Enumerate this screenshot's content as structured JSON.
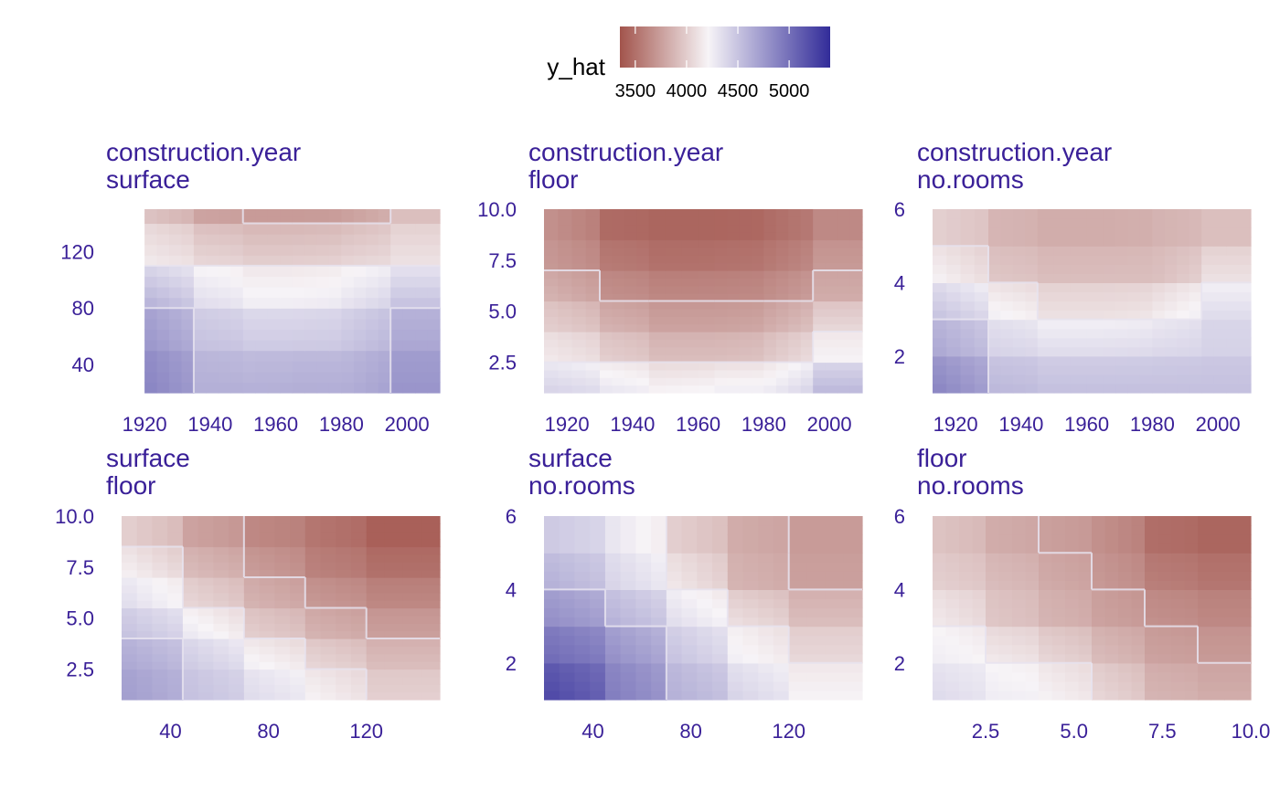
{
  "legend": {
    "title": "y_hat",
    "tick_labels": [
      "3500",
      "4000",
      "4500",
      "5000"
    ],
    "tick_values": [
      3500,
      4000,
      4500,
      5000
    ],
    "range": [
      3350,
      5400
    ],
    "low_color": "#a2544c",
    "mid_color": "#f7f4f7",
    "high_color": "#322c99"
  },
  "colors": {
    "panel_title": "#3a2098",
    "tick_label": "#3a2098",
    "contour": "#e8e4f0"
  },
  "chart_data": [
    {
      "type": "heatmap",
      "title": [
        "construction.year",
        "surface"
      ],
      "x_ticks": [
        "1920",
        "1940",
        "1960",
        "1980",
        "2000"
      ],
      "x_tick_values": [
        1920,
        1940,
        1960,
        1980,
        2000
      ],
      "xlim": [
        1913,
        2010
      ],
      "y_ticks": [
        "40",
        "80",
        "120"
      ],
      "y_tick_values": [
        40,
        80,
        120
      ],
      "ylim": [
        20,
        150
      ],
      "x_grid": [
        1920,
        1935,
        1950,
        1965,
        1980,
        1995,
        2010
      ],
      "y_grid": [
        20,
        50,
        80,
        110,
        140,
        150
      ],
      "z": [
        [
          4900,
          4650,
          4640,
          4660,
          4650,
          4800
        ],
        [
          4800,
          4550,
          4500,
          4500,
          4520,
          4700
        ],
        [
          4650,
          4400,
          4300,
          4300,
          4350,
          4550
        ],
        [
          4200,
          4100,
          4050,
          4050,
          4080,
          4150
        ],
        [
          3980,
          3800,
          3750,
          3750,
          3770,
          3950
        ]
      ]
    },
    {
      "type": "heatmap",
      "title": [
        "construction.year",
        "floor"
      ],
      "x_ticks": [
        "1920",
        "1940",
        "1960",
        "1980",
        "2000"
      ],
      "x_tick_values": [
        1920,
        1940,
        1960,
        1980,
        2000
      ],
      "xlim": [
        1913,
        2010
      ],
      "y_ticks": [
        "2.5",
        "5.0",
        "7.5",
        "10.0"
      ],
      "y_tick_values": [
        2.5,
        5.0,
        7.5,
        10.0
      ],
      "ylim": [
        1,
        10
      ],
      "x_grid": [
        1913,
        1930,
        1945,
        1965,
        1980,
        1995,
        2010
      ],
      "y_grid": [
        1,
        2.5,
        4,
        5.5,
        7,
        8.5,
        10
      ],
      "z": [
        [
          4450,
          4350,
          4250,
          4300,
          4300,
          4600
        ],
        [
          4200,
          4050,
          3950,
          3950,
          4000,
          4250
        ],
        [
          4050,
          3900,
          3800,
          3800,
          3850,
          4100
        ],
        [
          3900,
          3700,
          3650,
          3650,
          3680,
          3850
        ],
        [
          3750,
          3580,
          3520,
          3530,
          3560,
          3750
        ],
        [
          3700,
          3480,
          3450,
          3450,
          3480,
          3650
        ]
      ]
    },
    {
      "type": "heatmap",
      "title": [
        "construction.year",
        "no.rooms"
      ],
      "x_ticks": [
        "1920",
        "1940",
        "1960",
        "1980",
        "2000"
      ],
      "x_tick_values": [
        1920,
        1940,
        1960,
        1980,
        2000
      ],
      "xlim": [
        1913,
        2010
      ],
      "y_ticks": [
        "2",
        "4",
        "6"
      ],
      "y_tick_values": [
        2,
        4,
        6
      ],
      "ylim": [
        1,
        6
      ],
      "x_grid": [
        1913,
        1930,
        1945,
        1965,
        1980,
        1995,
        2010
      ],
      "y_grid": [
        1,
        2,
        3,
        4,
        5,
        6
      ],
      "z": [
        [
          4900,
          4600,
          4550,
          4550,
          4550,
          4550
        ],
        [
          4700,
          4450,
          4400,
          4400,
          4420,
          4450
        ],
        [
          4550,
          4300,
          4150,
          4150,
          4200,
          4400
        ],
        [
          4250,
          4000,
          3950,
          3950,
          3950,
          4150
        ],
        [
          4050,
          3900,
          3850,
          3850,
          3880,
          3950
        ]
      ]
    },
    {
      "type": "heatmap",
      "title": [
        "surface",
        "floor"
      ],
      "x_ticks": [
        "40",
        "80",
        "120"
      ],
      "x_tick_values": [
        40,
        80,
        120
      ],
      "xlim": [
        20,
        150
      ],
      "y_ticks": [
        "2.5",
        "5.0",
        "7.5",
        "10.0"
      ],
      "y_tick_values": [
        2.5,
        5.0,
        7.5,
        10.0
      ],
      "ylim": [
        1,
        10
      ],
      "x_grid": [
        20,
        45,
        70,
        95,
        120,
        150
      ],
      "y_grid": [
        1,
        2.5,
        4,
        5.5,
        7,
        8.5,
        10
      ],
      "z": [
        [
          4750,
          4550,
          4400,
          4250,
          4050
        ],
        [
          4700,
          4500,
          4300,
          4100,
          3950
        ],
        [
          4550,
          4350,
          4050,
          3900,
          3780
        ],
        [
          4400,
          4100,
          3900,
          3750,
          3650
        ],
        [
          4250,
          3950,
          3780,
          3620,
          3520
        ],
        [
          4050,
          3800,
          3650,
          3550,
          3420
        ]
      ]
    },
    {
      "type": "heatmap",
      "title": [
        "surface",
        "no.rooms"
      ],
      "x_ticks": [
        "40",
        "80",
        "120"
      ],
      "x_tick_values": [
        40,
        80,
        120
      ],
      "xlim": [
        20,
        150
      ],
      "y_ticks": [
        "2",
        "4",
        "6"
      ],
      "y_tick_values": [
        2,
        4,
        6
      ],
      "ylim": [
        1,
        6
      ],
      "x_grid": [
        20,
        45,
        70,
        95,
        120,
        150
      ],
      "y_grid": [
        1,
        2,
        3,
        4,
        5,
        6
      ],
      "z": [
        [
          5250,
          4950,
          4650,
          4450,
          4250
        ],
        [
          5050,
          4850,
          4550,
          4300,
          4100
        ],
        [
          4850,
          4650,
          4400,
          4150,
          3950
        ],
        [
          4650,
          4450,
          4200,
          3900,
          3780
        ],
        [
          4500,
          4350,
          4050,
          3850,
          3750
        ]
      ]
    },
    {
      "type": "heatmap",
      "title": [
        "floor",
        "no.rooms"
      ],
      "x_ticks": [
        "2.5",
        "5.0",
        "7.5",
        "10.0"
      ],
      "x_tick_values": [
        2.5,
        5.0,
        7.5,
        10.0
      ],
      "xlim": [
        1,
        10
      ],
      "y_ticks": [
        "2",
        "4",
        "6"
      ],
      "y_tick_values": [
        2,
        4,
        6
      ],
      "ylim": [
        1,
        6
      ],
      "x_grid": [
        1,
        2.5,
        4,
        5.5,
        7,
        8.5,
        10
      ],
      "y_grid": [
        1,
        2,
        3,
        4,
        5,
        6
      ],
      "z": [
        [
          4400,
          4300,
          4250,
          4100,
          3900,
          3850
        ],
        [
          4300,
          4200,
          4100,
          3950,
          3800,
          3750
        ],
        [
          4200,
          4000,
          3900,
          3800,
          3700,
          3650
        ],
        [
          4050,
          3950,
          3850,
          3750,
          3600,
          3550
        ],
        [
          3980,
          3850,
          3780,
          3700,
          3500,
          3450
        ]
      ]
    }
  ]
}
